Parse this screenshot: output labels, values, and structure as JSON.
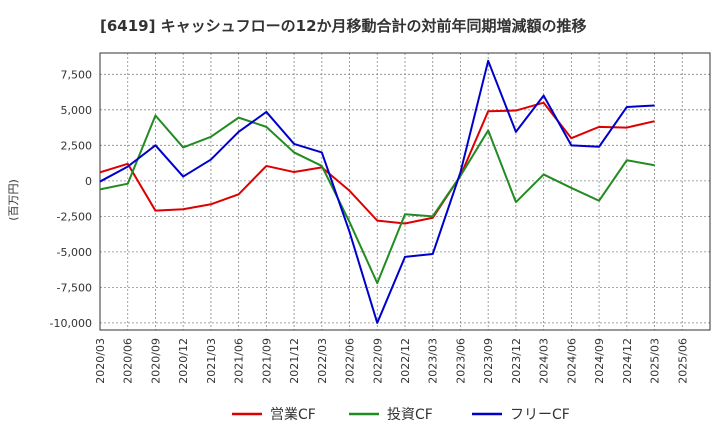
{
  "chart_data": {
    "type": "line",
    "title": "[6419]  キャッシュフローの12か月移動合計の対前年同期増減額の推移",
    "ylabel": "(百万円)",
    "xlabel": "",
    "ylim": [
      -10500,
      9000
    ],
    "yticks": [
      7500,
      5000,
      2500,
      0,
      -2500,
      -5000,
      -7500,
      -10000
    ],
    "ytick_labels": [
      "7,500",
      "5,000",
      "2,500",
      "0",
      "-2,500",
      "-5,000",
      "-7,500",
      "-10,000"
    ],
    "x_tick_labels": [
      "2020/03",
      "2020/06",
      "2020/09",
      "2020/12",
      "2021/03",
      "2021/06",
      "2021/09",
      "2021/12",
      "2022/03",
      "2022/06",
      "2022/09",
      "2022/12",
      "2023/03",
      "2023/06",
      "2023/09",
      "2023/12",
      "2024/03",
      "2024/06",
      "2024/09",
      "2024/12",
      "2025/03",
      "2025/06"
    ],
    "grid": true,
    "legend_position": "bottom",
    "series": [
      {
        "name": "営業CF",
        "color": "#dd0000",
        "values": [
          600,
          1200,
          -2100,
          -2000,
          -1650,
          -950,
          1050,
          620,
          950,
          -700,
          -2800,
          -3000,
          -2600,
          350,
          4900,
          4950,
          5500,
          3000,
          3800,
          3750,
          4200,
          null
        ]
      },
      {
        "name": "投資CF",
        "color": "#228b22",
        "values": [
          -600,
          -200,
          4600,
          2350,
          3100,
          4450,
          3800,
          2000,
          1050,
          -2900,
          -7200,
          -2350,
          -2500,
          350,
          3550,
          -1500,
          450,
          -500,
          -1400,
          1450,
          1100,
          null
        ]
      },
      {
        "name": "フリーCF",
        "color": "#0000cc",
        "values": [
          -50,
          1000,
          2500,
          300,
          1500,
          3450,
          4850,
          2600,
          2000,
          -3600,
          -10000,
          -5350,
          -5150,
          600,
          8450,
          3450,
          6000,
          2500,
          2400,
          5200,
          5300,
          null
        ]
      }
    ]
  }
}
